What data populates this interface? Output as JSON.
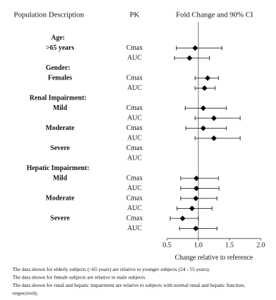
{
  "chart_data": {
    "type": "forest",
    "column_headers": [
      "Population Description",
      "PK",
      "Fold Change and 90% CI"
    ],
    "rows": [
      {
        "heading": "Age:"
      },
      {
        "label": ">65 years",
        "pk": "Cmax",
        "value": 0.95,
        "low": 0.65,
        "high": 1.38
      },
      {
        "pk": "AUC",
        "value": 0.86,
        "low": 0.62,
        "high": 1.18
      },
      {
        "heading": "Gender:"
      },
      {
        "label": "Females",
        "pk": "Cmax",
        "value": 1.15,
        "low": 0.95,
        "high": 1.32
      },
      {
        "pk": "AUC",
        "value": 1.1,
        "low": 0.95,
        "high": 1.27
      },
      {
        "heading": "Renal Impairment:"
      },
      {
        "label": "Mild",
        "pk": "Cmax",
        "value": 1.08,
        "low": 0.79,
        "high": 1.45
      },
      {
        "pk": "AUC",
        "value": 1.25,
        "low": 0.95,
        "high": 1.67
      },
      {
        "label": "Moderate",
        "pk": "Cmax",
        "value": 1.08,
        "low": 0.8,
        "high": 1.45
      },
      {
        "pk": "AUC",
        "value": 1.25,
        "low": 0.95,
        "high": 1.67
      },
      {
        "label": "Severe",
        "pk": "Cmax",
        "value": null,
        "low": null,
        "high": null
      },
      {
        "pk": "AUC",
        "value": null,
        "low": null,
        "high": null
      },
      {
        "heading": "Hepatic Impairment:"
      },
      {
        "label": "Mild",
        "pk": "Cmax",
        "value": 0.97,
        "low": 0.72,
        "high": 1.32
      },
      {
        "pk": "AUC",
        "value": 0.97,
        "low": 0.72,
        "high": 1.33
      },
      {
        "label": "Moderate",
        "pk": "Cmax",
        "value": 0.96,
        "low": 0.72,
        "high": 1.3
      },
      {
        "pk": "AUC",
        "value": 0.9,
        "low": 0.66,
        "high": 1.22
      },
      {
        "label": "Severe",
        "pk": "Cmax",
        "value": 0.75,
        "low": 0.55,
        "high": 1.0
      },
      {
        "pk": "AUC",
        "value": 0.96,
        "low": 0.7,
        "high": 1.3
      }
    ],
    "reference": 1,
    "xlim": [
      0.5,
      2.0
    ],
    "xticks": [
      0.5,
      {
        "value": 1,
        "label": "1.0"
      },
      1.5,
      {
        "value": 2,
        "label": "2.0"
      }
    ],
    "xlabel": "Change relative to reference",
    "color": "#000000",
    "footnotes": [
      "The data shown for elderly subjects (>65 years) are relative to younger subjects (24 - 55 years).",
      "The data shown for female subjects are relative to male subjects.",
      "The data shown for renal and hepatic impairment are relative to subjects with normal renal and hepatic function,",
      "respectively."
    ]
  }
}
